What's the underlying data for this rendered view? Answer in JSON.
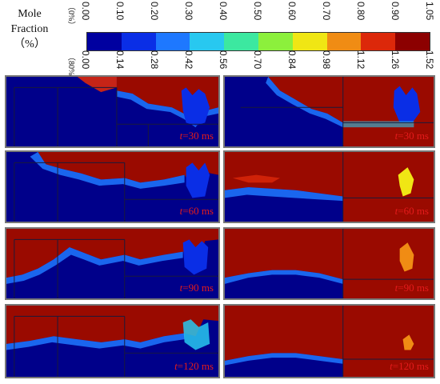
{
  "legend": {
    "title_line1": "Mole",
    "title_line2": "Fraction",
    "title_line3": "（%）",
    "scale_top_label": "（0%）",
    "scale_bottom_label": "（80%）",
    "top_ticks": [
      "0.00",
      "0.10",
      "0.20",
      "0.30",
      "0.40",
      "0.50",
      "0.60",
      "0.70",
      "0.80",
      "0.90",
      "1.05"
    ],
    "bottom_ticks": [
      "0.00",
      "0.14",
      "0.28",
      "0.42",
      "0.56",
      "0.70",
      "0.84",
      "0.98",
      "1.12",
      "1.26",
      "1.52"
    ],
    "colors": [
      "#0000a0",
      "#0a2ee6",
      "#1e78ff",
      "#28c8f0",
      "#3ce8a0",
      "#8cf03c",
      "#f0e614",
      "#f08c14",
      "#dc280a",
      "#8c0000"
    ]
  },
  "panels": [
    {
      "time_var": "t",
      "time_text": "=30 ms"
    },
    {
      "time_var": "t",
      "time_text": "=30 ms"
    },
    {
      "time_var": "t",
      "time_text": "=60 ms"
    },
    {
      "time_var": "t",
      "time_text": "=60 ms"
    },
    {
      "time_var": "t",
      "time_text": "=90 ms"
    },
    {
      "time_var": "t",
      "time_text": "=90 ms"
    },
    {
      "time_var": "t",
      "time_text": "=120 ms"
    },
    {
      "time_var": "t",
      "time_text": "=120 ms"
    }
  ]
}
